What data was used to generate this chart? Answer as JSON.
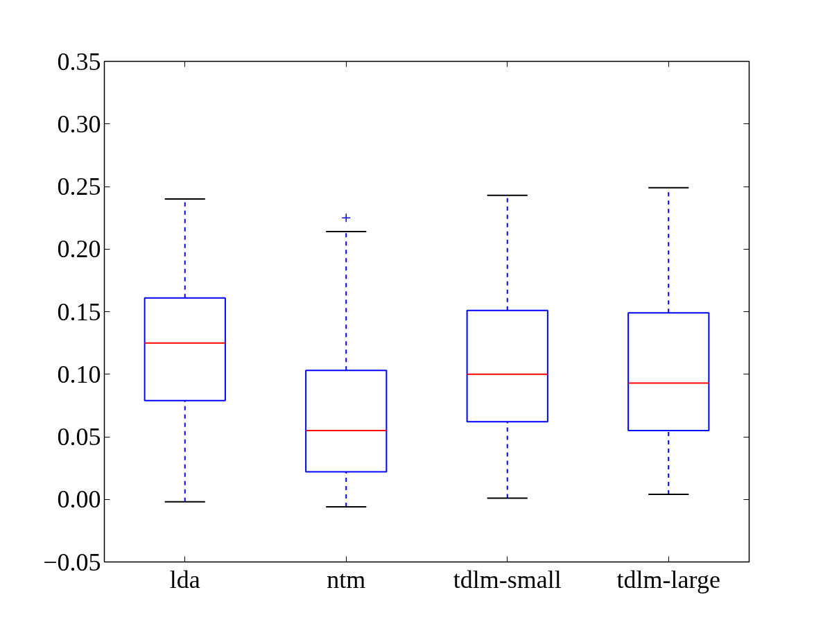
{
  "chart_data": {
    "type": "box",
    "categories": [
      "lda",
      "ntm",
      "tdlm-small",
      "tdlm-large"
    ],
    "boxes": [
      {
        "low": -0.002,
        "q1": 0.079,
        "median": 0.125,
        "q3": 0.161,
        "high": 0.24
      },
      {
        "low": -0.006,
        "q1": 0.022,
        "median": 0.055,
        "q3": 0.103,
        "high": 0.214,
        "outliers": [
          0.225
        ]
      },
      {
        "low": 0.001,
        "q1": 0.062,
        "median": 0.1,
        "q3": 0.151,
        "high": 0.243
      },
      {
        "low": 0.004,
        "q1": 0.055,
        "median": 0.093,
        "q3": 0.149,
        "high": 0.249
      }
    ],
    "color": "#0000ff",
    "line_style": "dashed",
    "marker": "cross",
    "ylim": [
      -0.05,
      0.35
    ],
    "yticks": [
      {
        "value": -0.05,
        "label": "−0.05"
      },
      {
        "value": 0.0,
        "label": "0.00"
      },
      {
        "value": 0.05,
        "label": "0.05"
      },
      {
        "value": 0.1,
        "label": "0.10"
      },
      {
        "value": 0.15,
        "label": "0.15"
      },
      {
        "value": 0.2,
        "label": "0.20"
      },
      {
        "value": 0.25,
        "label": "0.25"
      },
      {
        "value": 0.3,
        "label": "0.30"
      },
      {
        "value": 0.35,
        "label": "0.35"
      }
    ],
    "grid": false
  }
}
